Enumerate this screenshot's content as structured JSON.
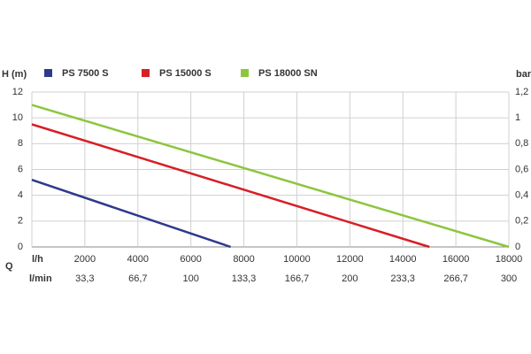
{
  "chart_data": {
    "type": "line",
    "y_label": "H (m)",
    "y2_label": "bar",
    "x_label": "l/h",
    "x2_label": "l/min",
    "x_axis_label": "Q",
    "series": [
      {
        "name": "PS 7500 S",
        "color": "#2e3a8c",
        "x": [
          0,
          7500
        ],
        "values": [
          5.2,
          0
        ]
      },
      {
        "name": "PS 15000 S",
        "color": "#d71f26",
        "x": [
          0,
          15000
        ],
        "values": [
          9.5,
          0
        ]
      },
      {
        "name": "PS 18000 SN",
        "color": "#8cc63f",
        "x": [
          0,
          18000
        ],
        "values": [
          11,
          0
        ]
      }
    ],
    "xlim": [
      0,
      18000
    ],
    "xticks": [
      2000,
      4000,
      6000,
      8000,
      10000,
      12000,
      14000,
      16000,
      18000
    ],
    "x2lim": [
      0,
      300
    ],
    "x2ticks": [
      {
        "value": 33.3,
        "label": "33,3"
      },
      {
        "value": 66.7,
        "label": "66,7"
      },
      100,
      {
        "value": 133.3,
        "label": "133,3"
      },
      {
        "value": 166.7,
        "label": "166,7"
      },
      200,
      {
        "value": 233.3,
        "label": "233,3"
      },
      {
        "value": 266.7,
        "label": "266,7"
      },
      300
    ],
    "ylim": [
      0,
      12
    ],
    "yticks": [
      0,
      2,
      4,
      6,
      8,
      10,
      12
    ],
    "y2lim": [
      0,
      1.2
    ],
    "y2ticks": [
      0,
      {
        "value": 0.2,
        "label": "0,2"
      },
      {
        "value": 0.4,
        "label": "0,4"
      },
      {
        "value": 0.6,
        "label": "0,6"
      },
      {
        "value": 0.8,
        "label": "0,8"
      },
      1,
      {
        "value": 1.2,
        "label": "1,2"
      }
    ],
    "grid": true
  }
}
